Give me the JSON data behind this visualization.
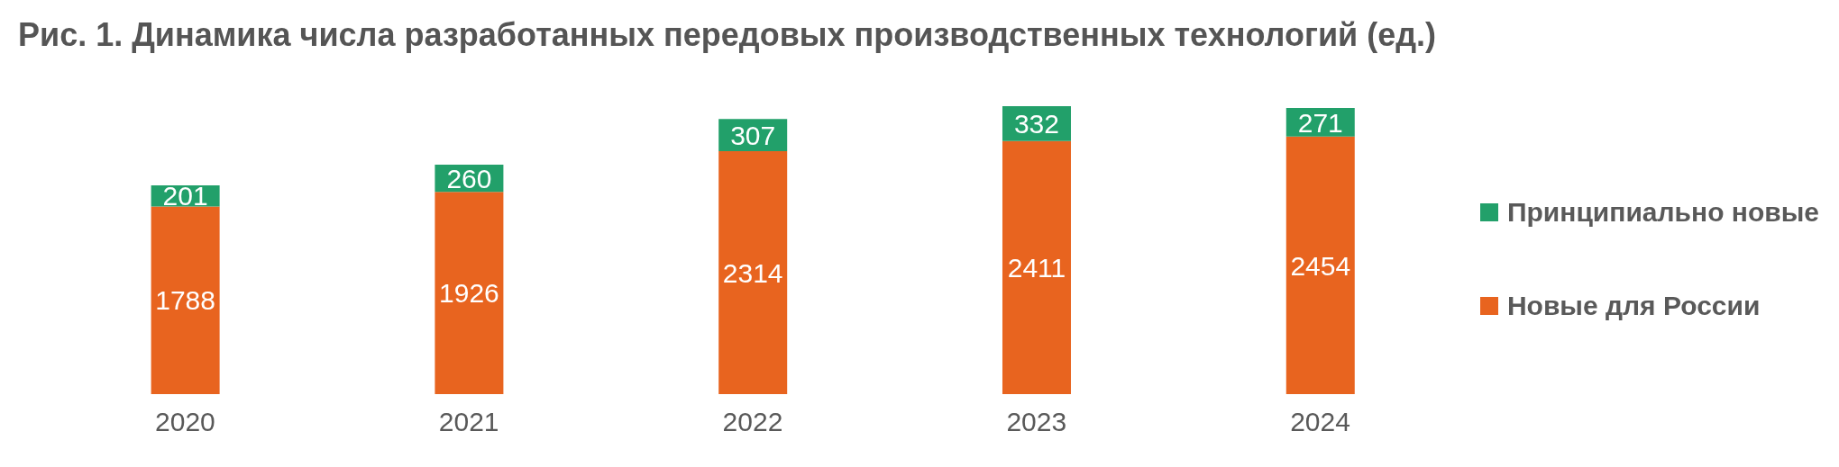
{
  "chart_data": {
    "type": "bar",
    "title": "Рис. 1.  Динамика числа разработанных передовых производственных технологий (ед.)",
    "categories": [
      "2020",
      "2021",
      "2022",
      "2023",
      "2024"
    ],
    "stacked": true,
    "data_labels": true,
    "legend": "right",
    "grid": false,
    "series": [
      {
        "name": "Новые для России",
        "color": "#e8641f",
        "values": [
          1788,
          1926,
          2314,
          2411,
          2454
        ]
      },
      {
        "name": "Принципиально новые",
        "color": "#22a06a",
        "values": [
          201,
          260,
          307,
          332,
          271
        ]
      }
    ]
  }
}
